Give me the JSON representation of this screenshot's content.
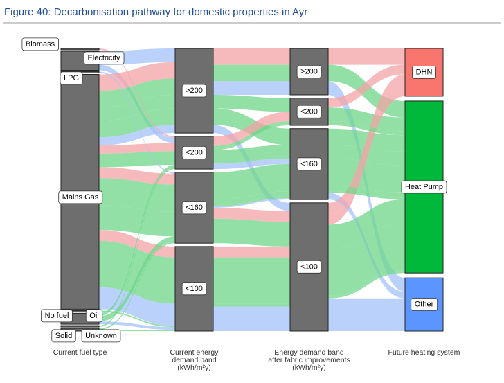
{
  "chart_data": {
    "type": "alluvial",
    "title": "Figure 40: Decarbonisation pathway for domestic properties in Ayr",
    "stages": [
      {
        "label": [
          "Current fuel type"
        ],
        "nodes": [
          "Biomass",
          "Electricity",
          "LPG",
          "Mains Gas",
          "No fuel",
          "Oil",
          "Solid",
          "Unknown"
        ]
      },
      {
        "label": [
          "Current energy",
          "demand band",
          "(kWh/m²y)"
        ],
        "nodes": [
          ">200",
          "<200",
          "<160",
          "<100"
        ]
      },
      {
        "label": [
          "Energy demand band",
          "after fabric improvements",
          "(kWh/m²y)"
        ],
        "nodes": [
          ">200",
          "<200",
          "<160",
          "<100"
        ]
      },
      {
        "label": [
          "Future heating system"
        ],
        "nodes": [
          "DHN",
          "Heat Pump",
          "Other"
        ]
      }
    ],
    "node_color": "#6e6e6e",
    "system_colors": {
      "DHN": "#f8766d",
      "Heat Pump": "#00b839",
      "Other": "#5b95ff"
    },
    "flow_colors": {
      "DHN": "#f4a3a6",
      "Heat Pump": "#6fd68a",
      "Other": "#a3c1fb"
    },
    "flows": [
      {
        "path": [
          "Electricity",
          ">200",
          ">200",
          "Other"
        ],
        "value": 5
      },
      {
        "path": [
          "Electricity",
          "<200",
          "<160",
          "Other"
        ],
        "value": 2
      },
      {
        "path": [
          "Mains Gas",
          ">200",
          ">200",
          "DHN"
        ],
        "value": 6
      },
      {
        "path": [
          "Mains Gas",
          ">200",
          ">200",
          "Heat Pump"
        ],
        "value": 6
      },
      {
        "path": [
          "Mains Gas",
          ">200",
          "<200",
          "Heat Pump"
        ],
        "value": 5
      },
      {
        "path": [
          "Mains Gas",
          ">200",
          "<160",
          "Heat Pump"
        ],
        "value": 6
      },
      {
        "path": [
          "Mains Gas",
          ">200",
          "<100",
          "Other"
        ],
        "value": 3
      },
      {
        "path": [
          "Mains Gas",
          "<200",
          "<200",
          "DHN"
        ],
        "value": 3
      },
      {
        "path": [
          "Mains Gas",
          "<200",
          "<160",
          "Heat Pump"
        ],
        "value": 5
      },
      {
        "path": [
          "Mains Gas",
          "<160",
          "<160",
          "Heat Pump"
        ],
        "value": 10
      },
      {
        "path": [
          "Mains Gas",
          "<160",
          "<100",
          "DHN"
        ],
        "value": 4
      },
      {
        "path": [
          "Mains Gas",
          "<160",
          "<100",
          "Heat Pump"
        ],
        "value": 9
      },
      {
        "path": [
          "Mains Gas",
          "<100",
          "<100",
          "DHN"
        ],
        "value": 4
      },
      {
        "path": [
          "Mains Gas",
          "<100",
          "<100",
          "Heat Pump"
        ],
        "value": 17
      },
      {
        "path": [
          "Mains Gas",
          "<100",
          "<100",
          "Other"
        ],
        "value": 8
      },
      {
        "path": [
          "Oil",
          "<160",
          "<160",
          "Heat Pump"
        ],
        "value": 2
      },
      {
        "path": [
          "Oil",
          "<200",
          "<200",
          "Heat Pump"
        ],
        "value": 1
      },
      {
        "path": [
          "Oil",
          "<100",
          "<100",
          "Other"
        ],
        "value": 1
      },
      {
        "path": [
          "Biomass",
          "<200",
          "<200",
          "DHN"
        ],
        "value": 0.5
      },
      {
        "path": [
          "LPG",
          "<160",
          "<160",
          "Other"
        ],
        "value": 0.5
      },
      {
        "path": [
          "No fuel",
          "<100",
          "<100",
          "Heat Pump"
        ],
        "value": 0.5
      },
      {
        "path": [
          "Solid",
          "<200",
          "<200",
          "Heat Pump"
        ],
        "value": 0.5
      },
      {
        "path": [
          "Unknown",
          "<160",
          "<160",
          "Heat Pump"
        ],
        "value": 0.5
      },
      {
        "path": [
          "Unknown",
          "<100",
          "<100",
          "Heat Pump"
        ],
        "value": 0.5
      }
    ]
  }
}
